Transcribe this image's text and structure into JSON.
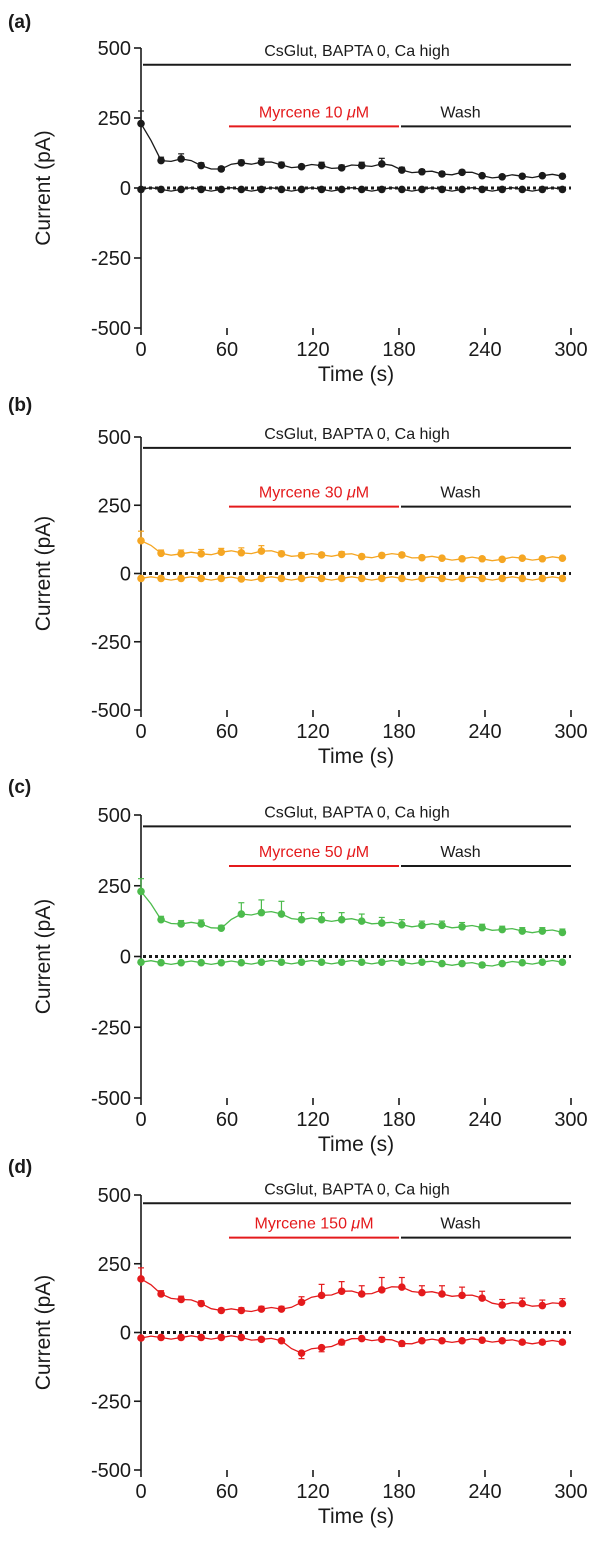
{
  "figure": {
    "ylabel": "Current (pA)",
    "xlabel": "Time (s)"
  },
  "chart_data": [
    {
      "panel": "(a)",
      "type": "line",
      "x_ticks": [
        0,
        60,
        120,
        180,
        240,
        300
      ],
      "y_ticks": [
        500,
        250,
        0,
        -250,
        -500
      ],
      "xlim": [
        0,
        300
      ],
      "ylim": [
        -500,
        500
      ],
      "xlabel": "Time (s)",
      "ylabel": "Current (pA)",
      "series_color": "#1a1a1a",
      "bars": [
        {
          "label": "CsGlut, BAPTA 0, Ca high",
          "start": 0,
          "end": 300,
          "y": 440,
          "color": "#1a1a1a",
          "unit_suffix": ""
        },
        {
          "label": "Myrcene 10 ",
          "start": 60,
          "end": 180,
          "y": 220,
          "color": "#e41a1c",
          "unit_suffix": "μM"
        },
        {
          "label": "Wash",
          "start": 180,
          "end": 300,
          "y": 220,
          "color": "#1a1a1a",
          "unit_suffix": ""
        }
      ],
      "series": [
        {
          "values": [
            [
              0,
              230
            ],
            [
              14,
              98
            ],
            [
              28,
              104
            ],
            [
              42,
              80
            ],
            [
              56,
              68
            ],
            [
              70,
              90
            ],
            [
              84,
              92
            ],
            [
              98,
              82
            ],
            [
              112,
              76
            ],
            [
              126,
              80
            ],
            [
              140,
              72
            ],
            [
              154,
              80
            ],
            [
              168,
              86
            ],
            [
              182,
              64
            ],
            [
              196,
              58
            ],
            [
              210,
              50
            ],
            [
              224,
              56
            ],
            [
              238,
              44
            ],
            [
              252,
              40
            ],
            [
              266,
              42
            ],
            [
              280,
              44
            ],
            [
              294,
              42
            ]
          ],
          "errors": [
            45,
            12,
            18,
            10,
            8,
            10,
            14,
            10,
            8,
            12,
            10,
            12,
            20,
            10,
            8,
            8,
            8,
            6,
            6,
            6,
            6,
            6
          ]
        },
        {
          "values": [
            [
              0,
              -5
            ],
            [
              14,
              -5
            ],
            [
              28,
              -5
            ],
            [
              42,
              -5
            ],
            [
              56,
              -5
            ],
            [
              70,
              -5
            ],
            [
              84,
              -5
            ],
            [
              98,
              -5
            ],
            [
              112,
              -5
            ],
            [
              126,
              -5
            ],
            [
              140,
              -5
            ],
            [
              154,
              -5
            ],
            [
              168,
              -5
            ],
            [
              182,
              -5
            ],
            [
              196,
              -5
            ],
            [
              210,
              -5
            ],
            [
              224,
              -5
            ],
            [
              238,
              -5
            ],
            [
              252,
              -5
            ],
            [
              266,
              -5
            ],
            [
              280,
              -5
            ],
            [
              294,
              -5
            ]
          ],
          "errors": [
            3,
            3,
            3,
            3,
            3,
            3,
            3,
            3,
            3,
            3,
            3,
            3,
            3,
            3,
            3,
            3,
            3,
            3,
            3,
            3,
            3,
            3
          ]
        }
      ]
    },
    {
      "panel": "(b)",
      "type": "line",
      "x_ticks": [
        0,
        60,
        120,
        180,
        240,
        300
      ],
      "y_ticks": [
        500,
        250,
        0,
        -250,
        -500
      ],
      "xlim": [
        0,
        300
      ],
      "ylim": [
        -500,
        500
      ],
      "xlabel": "Time (s)",
      "ylabel": "Current (pA)",
      "series_color": "#f5a623",
      "bars": [
        {
          "label": "CsGlut, BAPTA 0, Ca high",
          "start": 0,
          "end": 300,
          "y": 460,
          "color": "#1a1a1a",
          "unit_suffix": ""
        },
        {
          "label": "Myrcene 30 ",
          "start": 60,
          "end": 180,
          "y": 245,
          "color": "#e41a1c",
          "unit_suffix": "μM"
        },
        {
          "label": "Wash",
          "start": 180,
          "end": 300,
          "y": 245,
          "color": "#1a1a1a",
          "unit_suffix": ""
        }
      ],
      "series": [
        {
          "values": [
            [
              0,
              120
            ],
            [
              14,
              74
            ],
            [
              28,
              72
            ],
            [
              42,
              72
            ],
            [
              56,
              78
            ],
            [
              70,
              76
            ],
            [
              84,
              82
            ],
            [
              98,
              72
            ],
            [
              112,
              66
            ],
            [
              126,
              68
            ],
            [
              140,
              70
            ],
            [
              154,
              62
            ],
            [
              168,
              66
            ],
            [
              182,
              68
            ],
            [
              196,
              58
            ],
            [
              210,
              56
            ],
            [
              224,
              54
            ],
            [
              238,
              54
            ],
            [
              252,
              52
            ],
            [
              266,
              56
            ],
            [
              280,
              54
            ],
            [
              294,
              56
            ]
          ],
          "errors": [
            35,
            12,
            14,
            16,
            14,
            18,
            20,
            10,
            10,
            8,
            10,
            8,
            8,
            8,
            6,
            6,
            6,
            6,
            6,
            6,
            6,
            6
          ]
        },
        {
          "values": [
            [
              0,
              -18
            ],
            [
              14,
              -18
            ],
            [
              28,
              -18
            ],
            [
              42,
              -18
            ],
            [
              56,
              -18
            ],
            [
              70,
              -20
            ],
            [
              84,
              -18
            ],
            [
              98,
              -18
            ],
            [
              112,
              -18
            ],
            [
              126,
              -18
            ],
            [
              140,
              -18
            ],
            [
              154,
              -18
            ],
            [
              168,
              -18
            ],
            [
              182,
              -18
            ],
            [
              196,
              -18
            ],
            [
              210,
              -18
            ],
            [
              224,
              -18
            ],
            [
              238,
              -18
            ],
            [
              252,
              -18
            ],
            [
              266,
              -18
            ],
            [
              280,
              -18
            ],
            [
              294,
              -18
            ]
          ],
          "errors": [
            3,
            3,
            3,
            3,
            3,
            3,
            3,
            3,
            3,
            3,
            3,
            3,
            3,
            3,
            3,
            3,
            3,
            3,
            3,
            3,
            3,
            3
          ]
        }
      ]
    },
    {
      "panel": "(c)",
      "type": "line",
      "x_ticks": [
        0,
        60,
        120,
        180,
        240,
        300
      ],
      "y_ticks": [
        500,
        250,
        0,
        -250,
        -500
      ],
      "xlim": [
        0,
        300
      ],
      "ylim": [
        -500,
        500
      ],
      "xlabel": "Time (s)",
      "ylabel": "Current (pA)",
      "series_color": "#4cbb4c",
      "bars": [
        {
          "label": "CsGlut, BAPTA 0, Ca high",
          "start": 0,
          "end": 300,
          "y": 460,
          "color": "#1a1a1a",
          "unit_suffix": ""
        },
        {
          "label": "Myrcene 50 ",
          "start": 60,
          "end": 180,
          "y": 320,
          "color": "#e41a1c",
          "unit_suffix": "μM"
        },
        {
          "label": "Wash",
          "start": 180,
          "end": 300,
          "y": 320,
          "color": "#1a1a1a",
          "unit_suffix": ""
        }
      ],
      "series": [
        {
          "values": [
            [
              0,
              230
            ],
            [
              14,
              130
            ],
            [
              28,
              115
            ],
            [
              42,
              115
            ],
            [
              56,
              100
            ],
            [
              70,
              150
            ],
            [
              84,
              155
            ],
            [
              98,
              150
            ],
            [
              112,
              130
            ],
            [
              126,
              130
            ],
            [
              140,
              130
            ],
            [
              154,
              125
            ],
            [
              168,
              118
            ],
            [
              182,
              112
            ],
            [
              196,
              110
            ],
            [
              210,
              110
            ],
            [
              224,
              105
            ],
            [
              238,
              102
            ],
            [
              252,
              95
            ],
            [
              266,
              90
            ],
            [
              280,
              90
            ],
            [
              294,
              85
            ]
          ],
          "errors": [
            45,
            12,
            12,
            14,
            10,
            40,
            45,
            45,
            25,
            25,
            25,
            25,
            20,
            18,
            15,
            15,
            15,
            12,
            12,
            12,
            12,
            12
          ]
        },
        {
          "values": [
            [
              0,
              -20
            ],
            [
              14,
              -22
            ],
            [
              28,
              -22
            ],
            [
              42,
              -22
            ],
            [
              56,
              -22
            ],
            [
              70,
              -22
            ],
            [
              84,
              -20
            ],
            [
              98,
              -20
            ],
            [
              112,
              -20
            ],
            [
              126,
              -20
            ],
            [
              140,
              -20
            ],
            [
              154,
              -20
            ],
            [
              168,
              -20
            ],
            [
              182,
              -20
            ],
            [
              196,
              -20
            ],
            [
              210,
              -25
            ],
            [
              224,
              -25
            ],
            [
              238,
              -30
            ],
            [
              252,
              -25
            ],
            [
              266,
              -22
            ],
            [
              280,
              -20
            ],
            [
              294,
              -20
            ]
          ],
          "errors": [
            4,
            4,
            4,
            4,
            4,
            4,
            4,
            4,
            4,
            4,
            4,
            4,
            4,
            4,
            4,
            6,
            6,
            8,
            5,
            4,
            4,
            4
          ]
        }
      ]
    },
    {
      "panel": "(d)",
      "type": "line",
      "x_ticks": [
        0,
        60,
        120,
        180,
        240,
        300
      ],
      "y_ticks": [
        500,
        250,
        0,
        -250,
        -500
      ],
      "xlim": [
        0,
        300
      ],
      "ylim": [
        -500,
        500
      ],
      "xlabel": "Time (s)",
      "ylabel": "Current (pA)",
      "series_color": "#e41a1c",
      "bars": [
        {
          "label": "CsGlut, BAPTA 0, Ca high",
          "start": 0,
          "end": 300,
          "y": 470,
          "color": "#1a1a1a",
          "unit_suffix": ""
        },
        {
          "label": "Myrcene 150 ",
          "start": 60,
          "end": 180,
          "y": 345,
          "color": "#e41a1c",
          "unit_suffix": "μM"
        },
        {
          "label": "Wash",
          "start": 180,
          "end": 300,
          "y": 345,
          "color": "#1a1a1a",
          "unit_suffix": ""
        }
      ],
      "series": [
        {
          "values": [
            [
              0,
              195
            ],
            [
              14,
              140
            ],
            [
              28,
              120
            ],
            [
              42,
              105
            ],
            [
              56,
              80
            ],
            [
              70,
              80
            ],
            [
              84,
              85
            ],
            [
              98,
              85
            ],
            [
              112,
              110
            ],
            [
              126,
              135
            ],
            [
              140,
              150
            ],
            [
              154,
              140
            ],
            [
              168,
              155
            ],
            [
              182,
              165
            ],
            [
              196,
              145
            ],
            [
              210,
              140
            ],
            [
              224,
              135
            ],
            [
              238,
              125
            ],
            [
              252,
              100
            ],
            [
              266,
              105
            ],
            [
              280,
              98
            ],
            [
              294,
              105
            ]
          ],
          "errors": [
            40,
            12,
            12,
            10,
            8,
            10,
            10,
            10,
            20,
            40,
            35,
            30,
            45,
            35,
            25,
            30,
            30,
            25,
            20,
            20,
            20,
            18
          ]
        },
        {
          "values": [
            [
              0,
              -20
            ],
            [
              14,
              -18
            ],
            [
              28,
              -18
            ],
            [
              42,
              -18
            ],
            [
              56,
              -18
            ],
            [
              70,
              -18
            ],
            [
              84,
              -25
            ],
            [
              98,
              -30
            ],
            [
              112,
              -75
            ],
            [
              126,
              -55
            ],
            [
              140,
              -35
            ],
            [
              154,
              -22
            ],
            [
              168,
              -25
            ],
            [
              182,
              -40
            ],
            [
              196,
              -30
            ],
            [
              210,
              -30
            ],
            [
              224,
              -30
            ],
            [
              238,
              -28
            ],
            [
              252,
              -30
            ],
            [
              266,
              -35
            ],
            [
              280,
              -35
            ],
            [
              294,
              -35
            ]
          ],
          "errors": [
            4,
            4,
            4,
            4,
            4,
            4,
            4,
            4,
            20,
            15,
            10,
            6,
            6,
            10,
            6,
            6,
            6,
            6,
            6,
            8,
            8,
            8
          ]
        }
      ]
    }
  ]
}
